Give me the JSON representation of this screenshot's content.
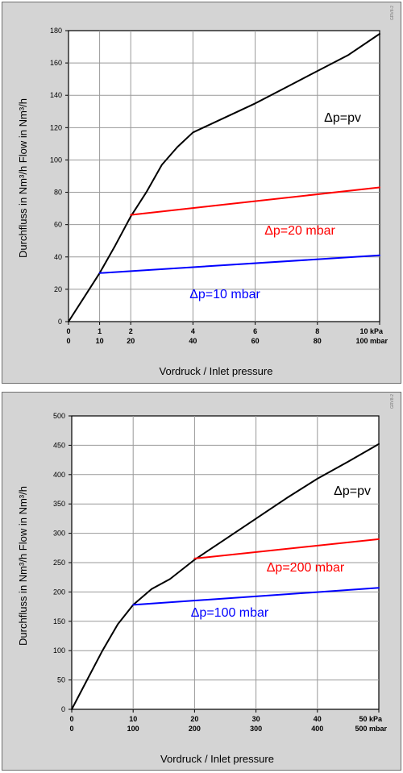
{
  "chart_data": [
    {
      "type": "line",
      "code": "GRV8-2",
      "ylabel": "Durchfluss in Nm³/h   Flow in Nm³/h",
      "xlabel": "Vordruck / Inlet pressure",
      "xlim": [
        0,
        100
      ],
      "ylim": [
        0,
        180
      ],
      "y_ticks": [
        "0",
        "20",
        "40",
        "60",
        "80",
        "100",
        "120",
        "140",
        "160",
        "180"
      ],
      "x_ticks_kpa": [
        "0",
        "1",
        "2",
        "4",
        "6",
        "8",
        "10 kPa"
      ],
      "x_ticks_mbar": [
        "0",
        "10",
        "20",
        "40",
        "60",
        "80",
        "100 mbar"
      ],
      "grid": true,
      "series": [
        {
          "name": "Δp=pv",
          "color": "#000000",
          "x": [
            0,
            5,
            10,
            15,
            20,
            25,
            30,
            35,
            40,
            50,
            60,
            70,
            80,
            90,
            100
          ],
          "y": [
            0,
            15,
            30,
            47,
            65,
            80,
            97,
            108,
            117,
            126,
            135,
            145,
            155,
            165,
            178
          ]
        },
        {
          "name": "Δp=20 mbar",
          "color": "#ff0000",
          "x": [
            20,
            100
          ],
          "y": [
            66,
            83
          ]
        },
        {
          "name": "Δp=10 mbar",
          "color": "#0000ff",
          "x": [
            10,
            100
          ],
          "y": [
            30,
            41
          ]
        }
      ]
    },
    {
      "type": "line",
      "code": "GRV8-2",
      "ylabel": "Durchfluss in Nm³/h   Flow in Nm³/h",
      "xlabel": "Vordruck / Inlet pressure",
      "xlim": [
        0,
        500
      ],
      "ylim": [
        0,
        500
      ],
      "y_ticks": [
        "0",
        "50",
        "100",
        "150",
        "200",
        "250",
        "300",
        "350",
        "400",
        "450",
        "500"
      ],
      "x_ticks_kpa": [
        "0",
        "10",
        "20",
        "30",
        "40",
        "50 kPa"
      ],
      "x_ticks_mbar": [
        "0",
        "100",
        "200",
        "300",
        "400",
        "500 mbar"
      ],
      "grid": true,
      "series": [
        {
          "name": "Δp=pv",
          "color": "#000000",
          "x": [
            0,
            25,
            50,
            75,
            100,
            130,
            160,
            200,
            250,
            300,
            350,
            400,
            450,
            500
          ],
          "y": [
            0,
            50,
            100,
            145,
            178,
            205,
            222,
            255,
            290,
            325,
            360,
            393,
            422,
            452
          ]
        },
        {
          "name": "Δp=200 mbar",
          "color": "#ff0000",
          "x": [
            200,
            500
          ],
          "y": [
            257,
            290
          ]
        },
        {
          "name": "Δp=100 mbar",
          "color": "#0000ff",
          "x": [
            100,
            500
          ],
          "y": [
            178,
            207
          ]
        }
      ]
    }
  ]
}
